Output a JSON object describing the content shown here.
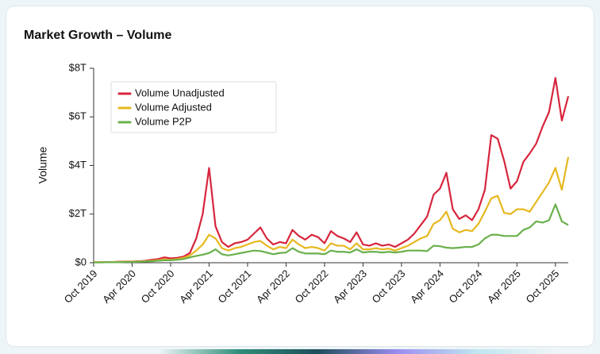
{
  "chart_data": {
    "type": "line",
    "title": "Market Growth – Volume",
    "y_label": "Volume",
    "categories": [
      "Oct 2019",
      null,
      null,
      null,
      null,
      null,
      "Apr 2020",
      null,
      null,
      null,
      null,
      null,
      "Oct 2020",
      null,
      null,
      null,
      null,
      null,
      "Apr 2021",
      null,
      null,
      null,
      null,
      null,
      "Oct 2021",
      null,
      null,
      null,
      null,
      null,
      "Apr 2022",
      null,
      null,
      null,
      null,
      null,
      "Oct 2022",
      null,
      null,
      null,
      null,
      null,
      "Apr 2023",
      null,
      null,
      null,
      null,
      null,
      "Oct 2023",
      null,
      null,
      null,
      null,
      null,
      "Apr 2024",
      null,
      null,
      null,
      null,
      null,
      "Oct 2024",
      null,
      null,
      null,
      null,
      null,
      "Apr 2025",
      null,
      null,
      null,
      null,
      null,
      "Oct 2025",
      null,
      null
    ],
    "series": [
      {
        "name": "Volume Unadjusted",
        "color": "#d7263d",
        "values": [
          0.02,
          0.02,
          0.02,
          0.03,
          0.04,
          0.05,
          0.05,
          0.06,
          0.08,
          0.12,
          0.15,
          0.22,
          0.18,
          0.2,
          0.25,
          0.4,
          1.0,
          2.0,
          3.9,
          1.5,
          0.85,
          0.65,
          0.8,
          0.85,
          0.95,
          1.2,
          1.45,
          1.0,
          0.75,
          0.85,
          0.8,
          1.35,
          1.1,
          0.95,
          1.15,
          1.05,
          0.8,
          1.3,
          1.1,
          1.0,
          0.85,
          1.25,
          0.75,
          0.7,
          0.8,
          0.7,
          0.75,
          0.65,
          0.8,
          0.95,
          1.2,
          1.55,
          1.9,
          2.8,
          3.05,
          3.7,
          2.2,
          1.8,
          1.95,
          1.75,
          2.2,
          3.0,
          5.25,
          5.1,
          4.2,
          3.05,
          3.35,
          4.15,
          4.5,
          4.9,
          5.6,
          6.2,
          7.6,
          5.85,
          6.85
        ]
      },
      {
        "name": "Volume Adjusted",
        "color": "#e6b820",
        "values": [
          0.02,
          0.02,
          0.02,
          0.03,
          0.03,
          0.04,
          0.04,
          0.05,
          0.06,
          0.08,
          0.1,
          0.14,
          0.12,
          0.15,
          0.2,
          0.3,
          0.5,
          0.75,
          1.15,
          1.0,
          0.6,
          0.5,
          0.6,
          0.65,
          0.75,
          0.85,
          0.9,
          0.7,
          0.55,
          0.65,
          0.6,
          0.95,
          0.75,
          0.6,
          0.65,
          0.6,
          0.5,
          0.8,
          0.7,
          0.7,
          0.55,
          0.8,
          0.55,
          0.55,
          0.6,
          0.55,
          0.58,
          0.5,
          0.6,
          0.7,
          0.85,
          1.0,
          1.1,
          1.6,
          1.75,
          2.1,
          1.4,
          1.25,
          1.35,
          1.3,
          1.6,
          2.1,
          2.65,
          2.75,
          2.05,
          2.0,
          2.2,
          2.2,
          2.1,
          2.5,
          2.9,
          3.3,
          3.9,
          3.0,
          4.35
        ]
      },
      {
        "name": "Volume P2P",
        "color": "#6ab04c",
        "values": [
          0.01,
          0.01,
          0.02,
          0.02,
          0.02,
          0.03,
          0.03,
          0.04,
          0.05,
          0.06,
          0.08,
          0.1,
          0.1,
          0.12,
          0.15,
          0.22,
          0.28,
          0.33,
          0.4,
          0.55,
          0.35,
          0.3,
          0.35,
          0.4,
          0.45,
          0.5,
          0.48,
          0.42,
          0.35,
          0.4,
          0.42,
          0.6,
          0.45,
          0.38,
          0.38,
          0.38,
          0.35,
          0.5,
          0.45,
          0.45,
          0.42,
          0.55,
          0.42,
          0.45,
          0.45,
          0.42,
          0.45,
          0.42,
          0.45,
          0.5,
          0.5,
          0.5,
          0.48,
          0.7,
          0.68,
          0.62,
          0.6,
          0.62,
          0.65,
          0.65,
          0.75,
          1.0,
          1.15,
          1.15,
          1.1,
          1.1,
          1.1,
          1.35,
          1.45,
          1.7,
          1.65,
          1.75,
          2.4,
          1.7,
          1.55
        ]
      }
    ],
    "ylim": [
      0,
      8
    ],
    "yticks": [
      {
        "value": 0,
        "label": "$0"
      },
      {
        "value": 2,
        "label": "$2T"
      },
      {
        "value": 4,
        "label": "$4T"
      },
      {
        "value": 6,
        "label": "$6T"
      },
      {
        "value": 8,
        "label": "$8T"
      }
    ],
    "legend": "top-left",
    "grid": false
  }
}
